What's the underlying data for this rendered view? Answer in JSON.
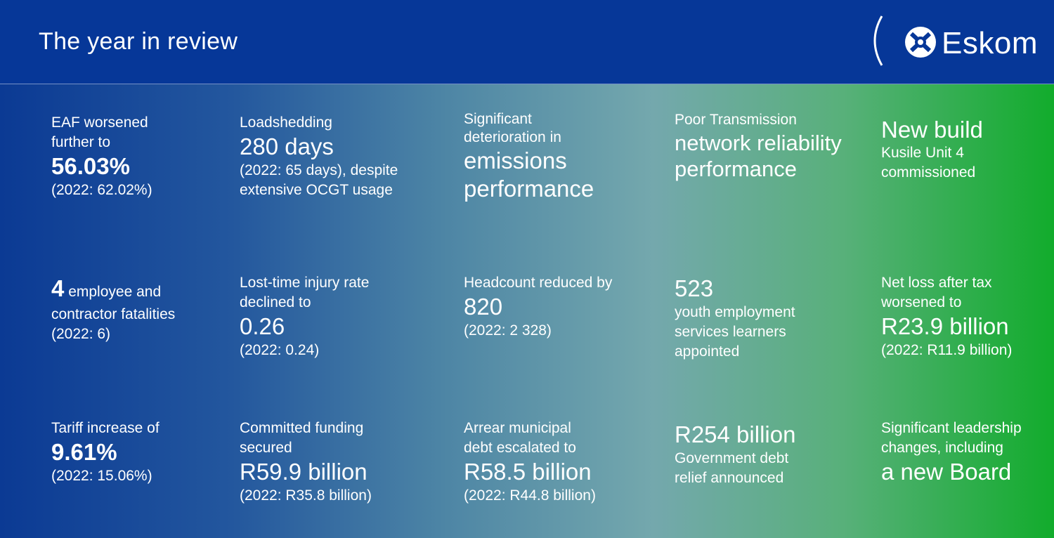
{
  "header": {
    "title": "The year in review",
    "logo_text": "Eskom"
  },
  "cells": {
    "eaf": {
      "l1": "EAF worsened",
      "l2": "further to",
      "value": "56.03%",
      "prev": "(2022: 62.02%)"
    },
    "loadshedding": {
      "label": "Loadshedding",
      "value": "280 days",
      "l3": "(2022: 65 days), despite",
      "l4": "extensive OCGT usage"
    },
    "emissions": {
      "l1": "Significant",
      "l2": "deterioration in",
      "l3": "emissions",
      "l4": "performance"
    },
    "transmission": {
      "l1": "Poor Transmission",
      "l2": "network reliability",
      "l3": "performance"
    },
    "newbuild": {
      "l1": "New build",
      "l2": "Kusile Unit 4",
      "l3": "commissioned"
    },
    "fatalities": {
      "value": "4",
      "l1rest": "employee and",
      "l2": "contractor fatalities",
      "prev": "(2022: 6)"
    },
    "injury": {
      "l1": "Lost-time injury rate",
      "l2": "declined to",
      "value": "0.26",
      "prev": "(2022: 0.24)"
    },
    "headcount": {
      "l1": "Headcount reduced by",
      "value": "820",
      "prev": "(2022: 2 328)"
    },
    "youth": {
      "value": "523",
      "l2": "youth employment",
      "l3": "services learners",
      "l4": "appointed"
    },
    "netloss": {
      "l1": "Net loss after tax",
      "l2": "worsened to",
      "value": "R23.9 billion",
      "prev": "(2022: R11.9 billion)"
    },
    "tariff": {
      "l1": "Tariff increase of",
      "value": "9.61%",
      "prev": "(2022: 15.06%)"
    },
    "funding": {
      "l1": "Committed funding",
      "l2": "secured",
      "value": "R59.9 billion",
      "prev": "(2022: R35.8 billion)"
    },
    "arrear": {
      "l1": "Arrear municipal",
      "l2": "debt escalated to",
      "value": "R58.5 billion",
      "prev": "(2022: R44.8 billion)"
    },
    "debtrelief": {
      "value": "R254 billion",
      "l2": "Government debt",
      "l3": "relief announced"
    },
    "leadership": {
      "l1": "Significant leadership",
      "l2": "changes, including",
      "value": "a new Board"
    }
  },
  "colors": {
    "header_bg": "#063798",
    "gradient_left": "#0b3a94",
    "gradient_right": "#12ac2c",
    "text": "#ffffff"
  }
}
